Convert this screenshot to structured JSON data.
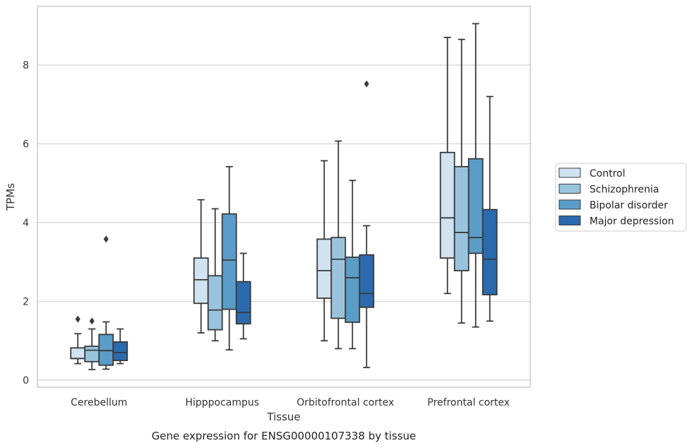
{
  "chart_data": {
    "type": "box",
    "xlabel": "Tissue",
    "ylabel": "TPMs",
    "caption": "Gene expression for ENSG00000107338 by tissue",
    "ylim": [
      -0.2,
      9.5
    ],
    "yticks": [
      0,
      2,
      4,
      6,
      8
    ],
    "grid": "horizontal",
    "legend_position": "right",
    "categories": [
      "Cerebellum",
      "Hipppocampus",
      "Orbitofrontal cortex",
      "Prefrontal cortex"
    ],
    "series": [
      {
        "name": "Control",
        "color": "#d1e2f1",
        "boxes": [
          {
            "whislo": 0.42,
            "q1": 0.55,
            "med": 0.55,
            "q3": 0.82,
            "whishi": 1.18,
            "fliers": [
              1.55
            ]
          },
          {
            "whislo": 1.2,
            "q1": 1.95,
            "med": 2.55,
            "q3": 3.1,
            "whishi": 4.58,
            "fliers": []
          },
          {
            "whislo": 1.0,
            "q1": 2.08,
            "med": 2.78,
            "q3": 3.58,
            "whishi": 5.57,
            "fliers": []
          },
          {
            "whislo": 2.2,
            "q1": 3.1,
            "med": 4.12,
            "q3": 5.78,
            "whishi": 8.7,
            "fliers": []
          }
        ]
      },
      {
        "name": "Schizophrenia",
        "color": "#9ac4de",
        "boxes": [
          {
            "whislo": 0.27,
            "q1": 0.47,
            "med": 0.76,
            "q3": 0.86,
            "whishi": 1.3,
            "fliers": [
              1.5
            ]
          },
          {
            "whislo": 1.0,
            "q1": 1.28,
            "med": 1.78,
            "q3": 2.65,
            "whishi": 4.35,
            "fliers": []
          },
          {
            "whislo": 0.8,
            "q1": 1.57,
            "med": 3.07,
            "q3": 3.62,
            "whishi": 6.07,
            "fliers": []
          },
          {
            "whislo": 1.45,
            "q1": 2.78,
            "med": 3.75,
            "q3": 5.42,
            "whishi": 8.65,
            "fliers": []
          }
        ]
      },
      {
        "name": "Bipolar disorder",
        "color": "#5b9dc9",
        "boxes": [
          {
            "whislo": 0.28,
            "q1": 0.38,
            "med": 0.75,
            "q3": 1.16,
            "whishi": 1.48,
            "fliers": [
              3.58
            ]
          },
          {
            "whislo": 0.77,
            "q1": 1.8,
            "med": 3.05,
            "q3": 4.22,
            "whishi": 5.42,
            "fliers": []
          },
          {
            "whislo": 0.8,
            "q1": 1.47,
            "med": 2.6,
            "q3": 3.12,
            "whishi": 5.07,
            "fliers": []
          },
          {
            "whislo": 1.35,
            "q1": 3.22,
            "med": 3.62,
            "q3": 5.62,
            "whishi": 9.05,
            "fliers": []
          }
        ]
      },
      {
        "name": "Major depression",
        "color": "#2a6aad",
        "boxes": [
          {
            "whislo": 0.42,
            "q1": 0.5,
            "med": 0.7,
            "q3": 0.97,
            "whishi": 1.3,
            "fliers": []
          },
          {
            "whislo": 1.05,
            "q1": 1.43,
            "med": 1.72,
            "q3": 2.5,
            "whishi": 3.22,
            "fliers": []
          },
          {
            "whislo": 0.32,
            "q1": 1.85,
            "med": 2.2,
            "q3": 3.18,
            "whishi": 3.92,
            "fliers": [
              7.52
            ]
          },
          {
            "whislo": 1.5,
            "q1": 2.17,
            "med": 3.07,
            "q3": 4.33,
            "whishi": 7.2,
            "fliers": []
          }
        ]
      }
    ]
  }
}
